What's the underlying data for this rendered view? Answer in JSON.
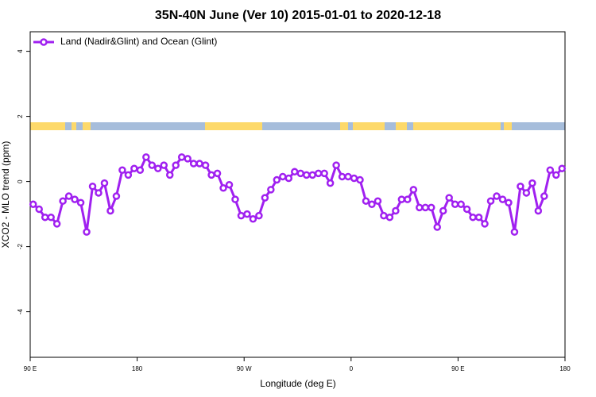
{
  "chart_data": {
    "type": "line",
    "title": "35N-40N June (Ver 10)   2015-01-01 to 2020-12-18",
    "xlabel": "Longitude (deg E)",
    "ylabel": "XCO2 - MLO trend (ppm)",
    "xlim": [
      90,
      540
    ],
    "ylim": [
      -5.4,
      4.6
    ],
    "xticks": [
      {
        "value": 90,
        "label": "90 E"
      },
      180,
      {
        "value": 270,
        "label": "90 W"
      },
      {
        "value": 360,
        "label": "0"
      },
      {
        "value": 450,
        "label": "90 E"
      },
      {
        "value": 540,
        "label": "180"
      }
    ],
    "yticks": [
      -4,
      -2,
      0,
      2,
      4
    ],
    "legend": "top-left",
    "x": [
      92.5,
      97.5,
      102.5,
      107.5,
      112.5,
      117.5,
      122.5,
      127.5,
      132.5,
      137.5,
      142.5,
      147.5,
      152.5,
      157.5,
      162.5,
      167.5,
      172.5,
      177.5,
      182.5,
      187.5,
      192.5,
      197.5,
      202.5,
      207.5,
      212.5,
      217.5,
      222.5,
      227.5,
      232.5,
      237.5,
      242.5,
      247.5,
      252.5,
      257.5,
      262.5,
      267.5,
      272.5,
      277.5,
      282.5,
      287.5,
      292.5,
      297.5,
      302.5,
      307.5,
      312.5,
      317.5,
      322.5,
      327.5,
      332.5,
      337.5,
      342.5,
      347.5,
      352.5,
      357.5,
      362.5,
      367.5,
      372.5,
      377.5,
      382.5,
      387.5,
      392.5,
      397.5,
      402.5,
      407.5,
      412.5,
      417.5,
      422.5,
      427.5,
      432.5,
      437.5,
      442.5,
      447.5,
      452.5,
      457.5,
      462.5,
      467.5,
      472.5,
      477.5,
      482.5,
      487.5,
      492.5,
      497.5,
      502.5,
      507.5,
      512.5,
      517.5,
      522.5,
      527.5,
      532.5,
      537.5
    ],
    "series": [
      {
        "name": "Land (Nadir&Glint) and Ocean (Glint)",
        "color": "#a020f0",
        "values": [
          -0.7,
          -0.85,
          -1.1,
          -1.1,
          -1.3,
          -0.6,
          -0.45,
          -0.55,
          -0.65,
          -1.55,
          -0.15,
          -0.35,
          -0.05,
          -0.9,
          -0.45,
          0.35,
          0.2,
          0.4,
          0.35,
          0.75,
          0.5,
          0.4,
          0.5,
          0.2,
          0.5,
          0.75,
          0.7,
          0.55,
          0.55,
          0.5,
          0.2,
          0.25,
          -0.2,
          -0.1,
          -0.55,
          -1.05,
          -1.0,
          -1.15,
          -1.05,
          -0.5,
          -0.25,
          0.05,
          0.15,
          0.1,
          0.3,
          0.25,
          0.2,
          0.2,
          0.25,
          0.25,
          -0.05,
          0.5,
          0.15,
          0.15,
          0.1,
          0.05,
          -0.6,
          -0.7,
          -0.6,
          -1.05,
          -1.1,
          -0.9,
          -0.55,
          -0.55,
          -0.25,
          -0.8,
          -0.8,
          -0.8,
          -1.4,
          -0.9,
          -0.5,
          -0.7,
          -0.7,
          -0.85,
          -1.1,
          -1.1,
          -1.3,
          -0.6,
          -0.45,
          -0.55,
          -0.65,
          -1.55,
          -0.15,
          -0.35,
          -0.05,
          -0.9,
          -0.45,
          0.35,
          0.2,
          0.4
        ]
      }
    ]
  }
}
